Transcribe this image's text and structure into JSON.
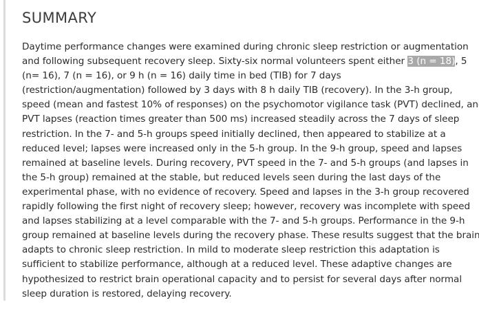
{
  "summary": {
    "heading": "SUMMARY",
    "lines": [
      "Daytime performance changes were examined during chronic sleep restriction or augmentation",
      "and following subsequent recovery sleep. Sixty-six normal volunteers spent either ",
      "(n=   16), 7 (n   =    16), or 9    h (n   =    16) daily time in bed (TIB) for 7    days",
      "(restriction/augmentation) followed by 3    days with 8    h daily TIB (recovery). In the 3-h group,",
      "speed (mean and fastest 10% of responses) on the psychomotor vigilance task (PVT) declined, and",
      "PVT lapses (reaction times greater than 500    ms) increased steadily across the 7    days of sleep",
      "restriction. In the 7- and 5-h groups speed initially declined, then appeared to stabilize at a",
      "reduced level; lapses were increased only in the 5-h group. In the 9-h group, speed and lapses",
      "remained at baseline levels. During recovery, PVT speed in the 7- and 5-h groups (and lapses in",
      "the 5-h group) remained at the stable, but reduced levels seen during the last days of the",
      "experimental phase, with no evidence of recovery. Speed and lapses in the 3-h group recovered",
      "rapidly following the first night of recovery sleep; however, recovery was incomplete with speed",
      "and lapses stabilizing at a level comparable with the 7- and 5-h groups. Performance in the 9-h",
      "group remained at baseline levels during the recovery phase. These results suggest that the brain",
      "adapts to chronic sleep restriction. In mild to moderate sleep restriction this adaptation is",
      "sufficient to stabilize performance, although at a reduced level. These adaptive changes are",
      "hypothesized to restrict brain operational capacity and to persist for several days after normal",
      "sleep duration is restored, delaying recovery."
    ],
    "selected_text": "3 (n   =   18)",
    "after_selection": ", 5"
  }
}
